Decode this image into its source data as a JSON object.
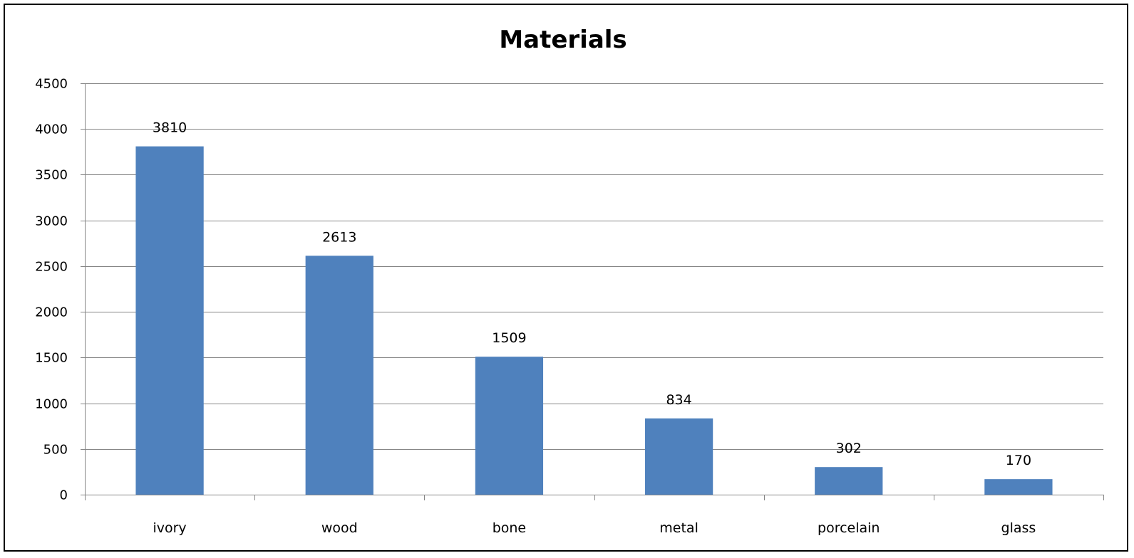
{
  "chart_data": {
    "type": "bar",
    "title": "Materials",
    "xlabel": "",
    "ylabel": "",
    "categories": [
      "ivory",
      "wood",
      "bone",
      "metal",
      "porcelain",
      "glass"
    ],
    "values": [
      3810,
      2613,
      1509,
      834,
      302,
      170
    ],
    "data_labels": [
      "3810",
      "2613",
      "1509",
      "834",
      "302",
      "170"
    ],
    "ylim": [
      0,
      4500
    ],
    "yticks": [
      0,
      500,
      1000,
      1500,
      2000,
      2500,
      3000,
      3500,
      4000,
      4500
    ],
    "ytick_labels": [
      "0",
      "500",
      "1000",
      "1500",
      "2000",
      "2500",
      "3000",
      "3500",
      "4000",
      "4500"
    ],
    "grid": true,
    "legend": "none",
    "bar_color": "#4f81bd",
    "gridline_color": "#868686",
    "axis_color": "#868686"
  }
}
